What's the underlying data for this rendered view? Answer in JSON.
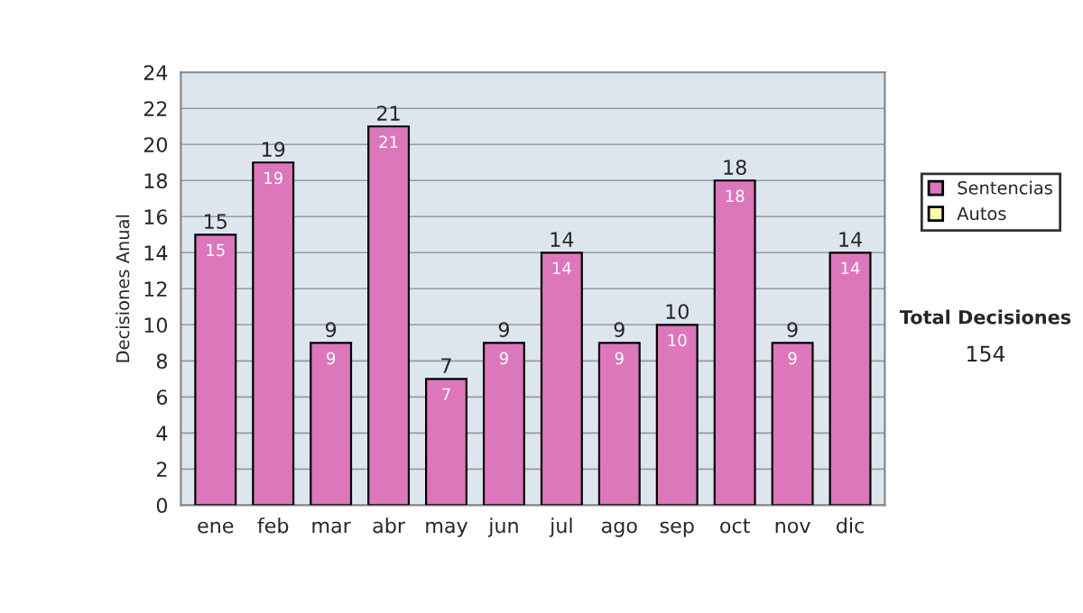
{
  "chart_data": {
    "type": "bar",
    "stacked": true,
    "ylabel": "Decisiones Anual",
    "categories": [
      "ene",
      "feb",
      "mar",
      "abr",
      "may",
      "jun",
      "jul",
      "ago",
      "sep",
      "oct",
      "nov",
      "dic"
    ],
    "series": [
      {
        "name": "Sentencias",
        "color": "#dd77bb",
        "values": [
          15,
          19,
          9,
          21,
          7,
          9,
          14,
          9,
          10,
          18,
          9,
          14
        ]
      },
      {
        "name": "Autos",
        "color": "#ffffaa",
        "values": [
          null,
          null,
          null,
          null,
          null,
          null,
          null,
          null,
          null,
          null,
          null,
          null
        ]
      }
    ],
    "data_labels": true,
    "totals": [
      "15",
      "19",
      "9",
      "21",
      "7",
      "9",
      "14",
      "9",
      "10",
      "18",
      "9",
      "14"
    ],
    "ylim": [
      0,
      24
    ],
    "yticks": [
      0,
      2,
      4,
      6,
      8,
      10,
      12,
      14,
      16,
      18,
      20,
      22,
      24
    ],
    "grid": "y",
    "legend": "right",
    "annotations": [
      "Total Decisiones",
      "154"
    ]
  }
}
